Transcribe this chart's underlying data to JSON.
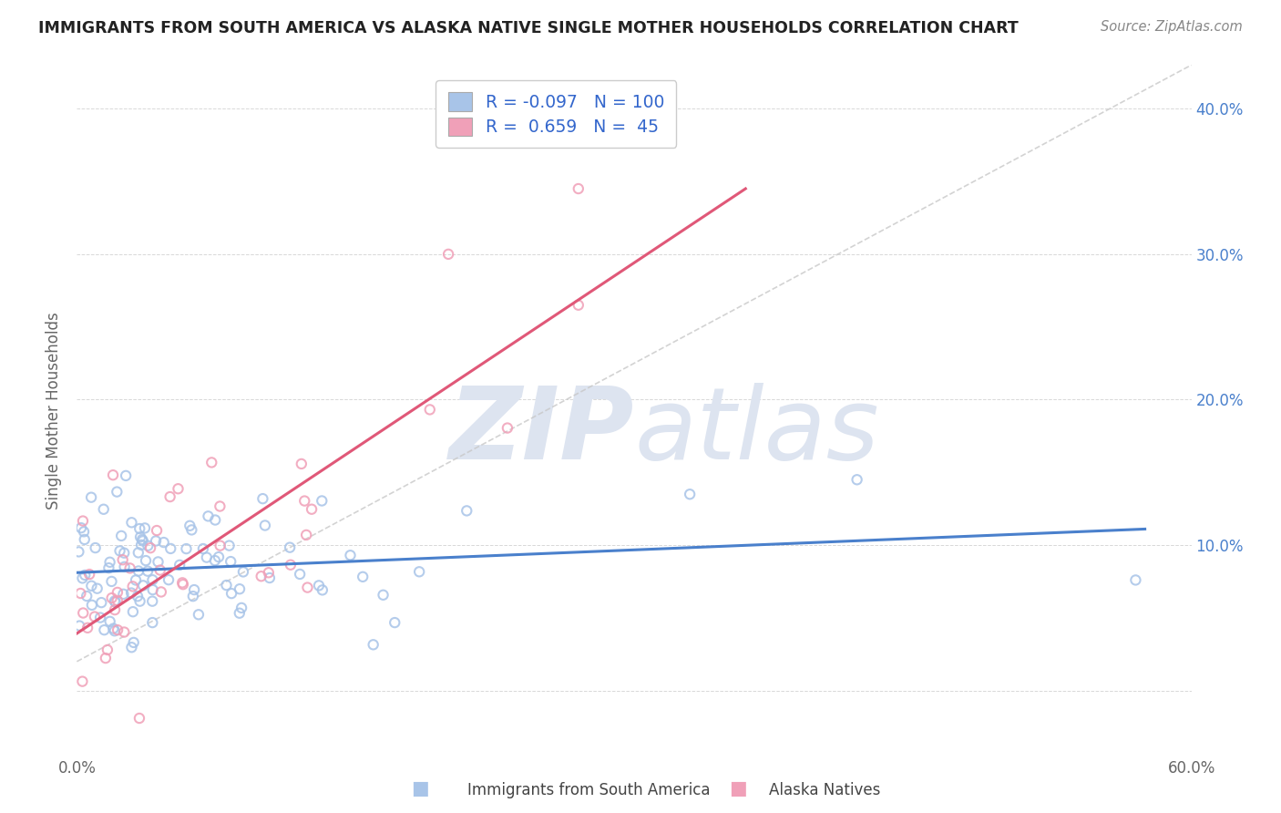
{
  "title": "IMMIGRANTS FROM SOUTH AMERICA VS ALASKA NATIVE SINGLE MOTHER HOUSEHOLDS CORRELATION CHART",
  "source": "Source: ZipAtlas.com",
  "ylabel": "Single Mother Households",
  "legend_blue_label": "Immigrants from South America",
  "legend_pink_label": "Alaska Natives",
  "legend_blue_R": -0.097,
  "legend_blue_N": 100,
  "legend_pink_R": 0.659,
  "legend_pink_N": 45,
  "xlim": [
    0.0,
    0.6
  ],
  "ylim": [
    -0.045,
    0.43
  ],
  "yticks": [
    0.0,
    0.1,
    0.2,
    0.3,
    0.4
  ],
  "ytick_labels": [
    "",
    "10.0%",
    "20.0%",
    "30.0%",
    "40.0%"
  ],
  "blue_scatter_color": "#a8c4e8",
  "pink_scatter_color": "#f0a0b8",
  "blue_line_color": "#4a80cc",
  "pink_line_color": "#e05878",
  "trendline_gray_color": "#c8c8c8",
  "background_color": "#ffffff",
  "watermark_color": "#dde4f0",
  "title_color": "#222222",
  "source_color": "#888888",
  "tick_color_y": "#4a80cc",
  "tick_color_x": "#666666",
  "ylabel_color": "#666666",
  "grid_color": "#d8d8d8"
}
